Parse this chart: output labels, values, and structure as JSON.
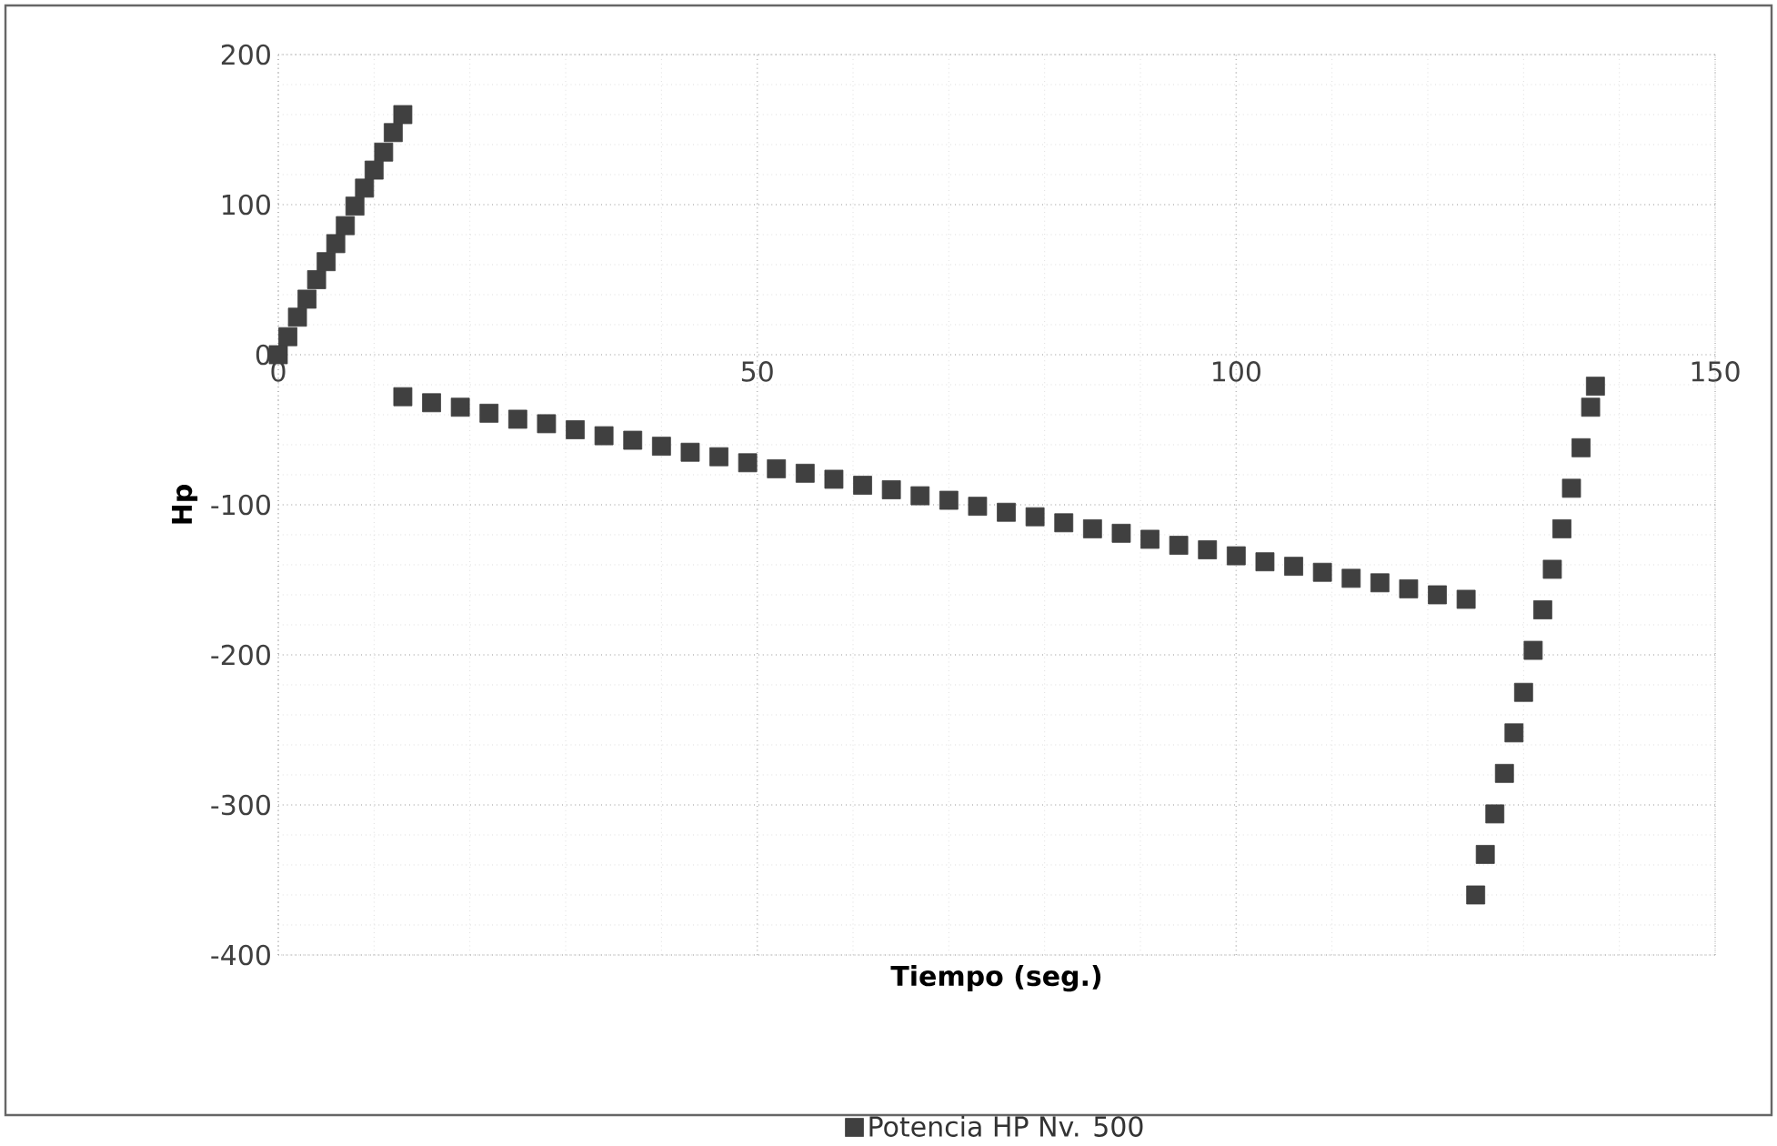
{
  "chart_data": {
    "type": "scatter",
    "xlabel": "Tiempo (seg.)",
    "ylabel": "Hp",
    "xlim": [
      0,
      150
    ],
    "xticks": [
      0,
      50,
      100,
      150
    ],
    "ylim": [
      -400,
      200
    ],
    "yticks": [
      -400,
      -300,
      -200,
      -100,
      0,
      100,
      200
    ],
    "grid": true,
    "legend": "bottom",
    "marker": "square",
    "series": [
      {
        "name": "Potencia HP Nv. 500",
        "color": "#404040",
        "x": [
          0,
          1,
          2,
          3,
          4,
          5,
          6,
          7,
          8,
          9,
          10,
          11,
          12,
          13,
          13,
          16,
          19,
          22,
          25,
          28,
          31,
          34,
          37,
          40,
          43,
          46,
          49,
          52,
          55,
          58,
          61,
          64,
          67,
          70,
          73,
          76,
          79,
          82,
          85,
          88,
          91,
          94,
          97,
          100,
          103,
          106,
          109,
          112,
          115,
          118,
          121,
          124,
          125,
          126,
          127,
          128,
          129,
          130,
          131,
          132,
          133,
          134,
          135,
          136,
          137,
          137.5
        ],
        "values": [
          0,
          12,
          25,
          37,
          50,
          62,
          74,
          86,
          99,
          111,
          123,
          135,
          148,
          160,
          -28,
          -32,
          -35,
          -39,
          -43,
          -46,
          -50,
          -54,
          -57,
          -61,
          -65,
          -68,
          -72,
          -76,
          -79,
          -83,
          -87,
          -90,
          -94,
          -97,
          -101,
          -105,
          -108,
          -112,
          -116,
          -119,
          -123,
          -127,
          -130,
          -134,
          -138,
          -141,
          -145,
          -149,
          -152,
          -156,
          -160,
          -163,
          -360,
          -333,
          -306,
          -279,
          -252,
          -225,
          -197,
          -170,
          -143,
          -116,
          -89,
          -62,
          -35,
          -21
        ]
      }
    ]
  }
}
